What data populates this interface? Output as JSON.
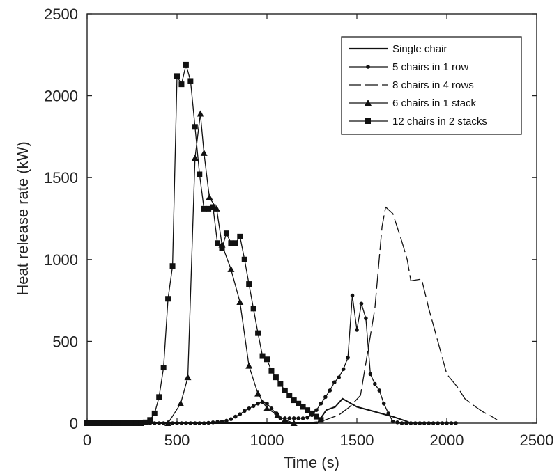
{
  "chart_data": {
    "type": "line",
    "title": "",
    "xlabel": "Time (s)",
    "ylabel": "Heat release rate (kW)",
    "xlim": [
      0,
      2500
    ],
    "ylim": [
      0,
      2500
    ],
    "xticks": [
      "0",
      "500",
      "1000",
      "1500",
      "2000",
      "2500"
    ],
    "yticks": [
      "0",
      "500",
      "1000",
      "1500",
      "2000",
      "2500"
    ],
    "grid": false,
    "legend_position": "top-right",
    "series": [
      {
        "name": "Single chair",
        "style": "solid",
        "marker": "none",
        "x": [
          0,
          1280,
          1330,
          1380,
          1420,
          1500,
          1600,
          1700,
          1780,
          1800
        ],
        "y": [
          0,
          0,
          80,
          100,
          150,
          100,
          70,
          40,
          10,
          0
        ]
      },
      {
        "name": "5 chairs in 1 row",
        "style": "solid",
        "marker": "circle",
        "x": [
          0,
          25,
          50,
          75,
          100,
          125,
          150,
          175,
          200,
          225,
          250,
          275,
          300,
          325,
          350,
          375,
          400,
          425,
          450,
          475,
          500,
          525,
          550,
          575,
          600,
          625,
          650,
          675,
          700,
          725,
          750,
          775,
          800,
          825,
          850,
          875,
          900,
          925,
          950,
          975,
          1000,
          1025,
          1050,
          1075,
          1100,
          1125,
          1150,
          1175,
          1200,
          1225,
          1250,
          1275,
          1300,
          1325,
          1350,
          1375,
          1400,
          1425,
          1450,
          1475,
          1500,
          1525,
          1550,
          1575,
          1600,
          1625,
          1650,
          1675,
          1700,
          1725,
          1750,
          1775,
          1800,
          1825,
          1850,
          1875,
          1900,
          1925,
          1950,
          1975,
          2000,
          2025,
          2050
        ],
        "y": [
          0,
          0,
          0,
          0,
          0,
          0,
          0,
          0,
          0,
          0,
          0,
          0,
          0,
          0,
          0,
          0,
          0,
          0,
          0,
          0,
          0,
          0,
          0,
          0,
          0,
          0,
          0,
          2,
          5,
          8,
          10,
          15,
          25,
          40,
          55,
          75,
          90,
          105,
          120,
          130,
          120,
          90,
          60,
          30,
          30,
          30,
          30,
          30,
          30,
          35,
          50,
          80,
          120,
          160,
          200,
          250,
          280,
          330,
          400,
          780,
          570,
          730,
          640,
          300,
          240,
          200,
          120,
          60,
          10,
          5,
          0,
          0,
          0,
          0,
          0,
          0,
          0,
          0,
          0,
          0,
          0,
          0,
          0
        ]
      },
      {
        "name": "8 chairs in 4 rows",
        "style": "long-dash",
        "marker": "none",
        "x": [
          0,
          1000,
          1040,
          1080,
          1200,
          1300,
          1400,
          1460,
          1520,
          1600,
          1640,
          1660,
          1700,
          1750,
          1780,
          1800,
          1860,
          1900,
          1960,
          2000,
          2060,
          2100,
          2160,
          2200,
          2260,
          2280
        ],
        "y": [
          0,
          0,
          0,
          0,
          0,
          10,
          50,
          100,
          170,
          700,
          1200,
          1320,
          1280,
          1110,
          1000,
          870,
          880,
          700,
          460,
          300,
          220,
          150,
          100,
          70,
          35,
          20
        ]
      },
      {
        "name": "6 chairs in 1 stack",
        "style": "solid",
        "marker": "triangle",
        "x": [
          0,
          450,
          520,
          560,
          600,
          630,
          650,
          680,
          720,
          750,
          800,
          850,
          900,
          950,
          1000,
          1060,
          1100,
          1150
        ],
        "y": [
          0,
          0,
          120,
          280,
          1620,
          1890,
          1650,
          1380,
          1310,
          1090,
          940,
          740,
          350,
          180,
          90,
          50,
          20,
          0
        ]
      },
      {
        "name": "12 chairs in 2 stacks",
        "style": "solid",
        "marker": "square",
        "x": [
          0,
          25,
          50,
          75,
          100,
          125,
          150,
          175,
          200,
          225,
          250,
          275,
          300,
          325,
          350,
          375,
          400,
          425,
          450,
          475,
          500,
          525,
          550,
          575,
          600,
          625,
          650,
          675,
          700,
          725,
          750,
          775,
          800,
          825,
          850,
          875,
          900,
          925,
          950,
          975,
          1000,
          1025,
          1050,
          1075,
          1100,
          1125,
          1150,
          1175,
          1200,
          1225,
          1250,
          1275,
          1300
        ],
        "y": [
          0,
          0,
          0,
          0,
          0,
          0,
          0,
          0,
          0,
          0,
          0,
          0,
          0,
          5,
          20,
          60,
          160,
          340,
          760,
          960,
          2120,
          2070,
          2190,
          2090,
          1810,
          1520,
          1310,
          1310,
          1320,
          1100,
          1070,
          1160,
          1100,
          1100,
          1140,
          1000,
          850,
          700,
          550,
          410,
          390,
          320,
          280,
          240,
          200,
          170,
          140,
          120,
          100,
          80,
          60,
          40,
          20
        ]
      }
    ]
  }
}
